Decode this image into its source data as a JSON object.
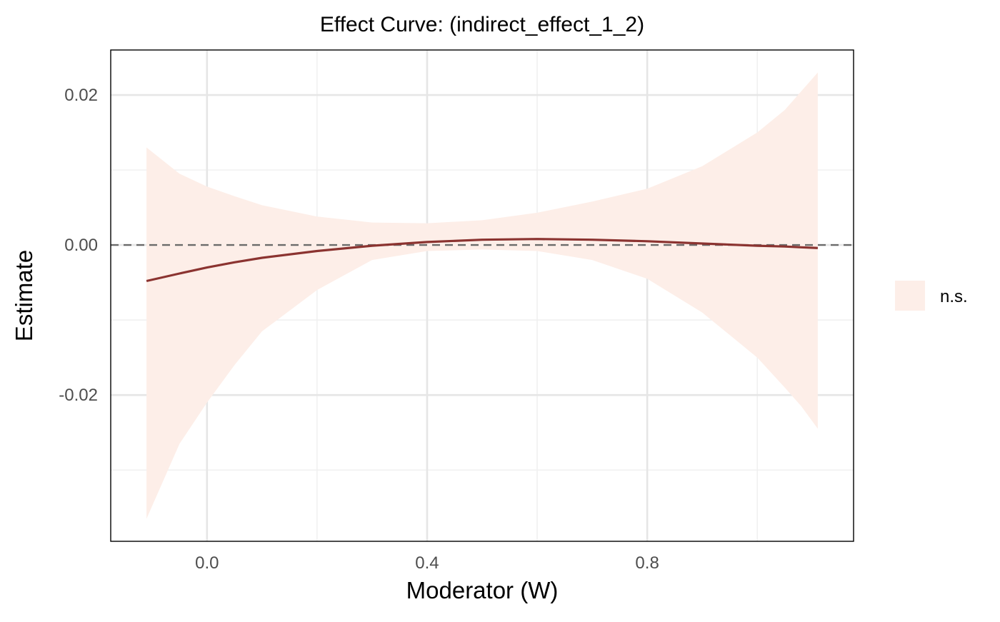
{
  "chart_data": {
    "type": "line",
    "title": "Effect Curve: (indirect_effect_1_2)",
    "xlabel": "Moderator (W)",
    "ylabel": "Estimate",
    "xlim": [
      -0.175,
      1.175
    ],
    "ylim": [
      -0.0395,
      0.026
    ],
    "x_ticks": [
      0.0,
      0.4,
      0.8
    ],
    "x_tick_labels": [
      "0.0",
      "0.4",
      "0.8"
    ],
    "y_ticks": [
      -0.02,
      0.0,
      0.02
    ],
    "y_tick_labels": [
      "-0.02",
      "0.00",
      "0.02"
    ],
    "grid": true,
    "reference_line": {
      "y": 0,
      "style": "dashed",
      "color": "#6b6b6b"
    },
    "legend": {
      "position": "right",
      "entries": [
        {
          "label": "n.s.",
          "color": "#fdeee8"
        }
      ]
    },
    "series": [
      {
        "name": "n.s.",
        "line_color": "#8b3330",
        "band_color": "#fdeee8",
        "x": [
          -0.11,
          -0.05,
          0.0,
          0.05,
          0.1,
          0.2,
          0.3,
          0.4,
          0.5,
          0.6,
          0.7,
          0.8,
          0.9,
          1.0,
          1.05,
          1.08,
          1.11
        ],
        "y": [
          -0.0048,
          -0.0038,
          -0.003,
          -0.0023,
          -0.0017,
          -0.0008,
          -0.0001,
          0.0004,
          0.0007,
          0.0008,
          0.0007,
          0.0005,
          0.0002,
          -0.0001,
          -0.0002,
          -0.0003,
          -0.0004
        ],
        "lower": [
          -0.0365,
          -0.0265,
          -0.021,
          -0.016,
          -0.0115,
          -0.006,
          -0.002,
          -0.0008,
          -0.0006,
          -0.0008,
          -0.002,
          -0.0045,
          -0.009,
          -0.015,
          -0.019,
          -0.0215,
          -0.0245
        ],
        "upper": [
          0.013,
          0.0095,
          0.0078,
          0.0065,
          0.0053,
          0.0038,
          0.003,
          0.0029,
          0.0033,
          0.0043,
          0.0058,
          0.0075,
          0.0105,
          0.015,
          0.018,
          0.0205,
          0.023
        ]
      }
    ]
  }
}
